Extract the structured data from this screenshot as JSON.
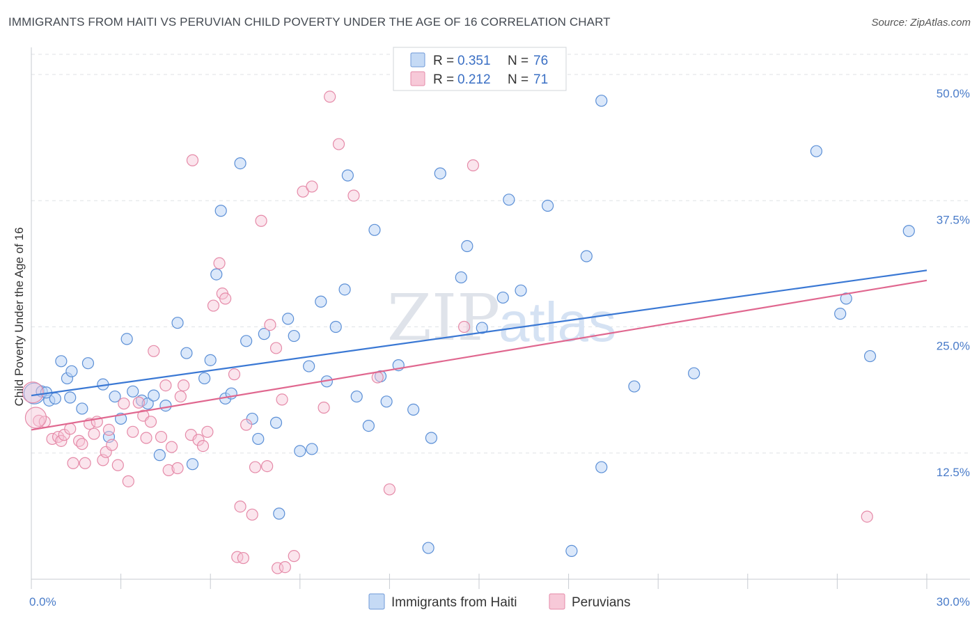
{
  "title": "IMMIGRANTS FROM HAITI VS PERUVIAN CHILD POVERTY UNDER THE AGE OF 16 CORRELATION CHART",
  "source": "Source: ZipAtlas.com",
  "watermark": {
    "zip": "ZIP",
    "atlas": "atlas"
  },
  "colors": {
    "blue": "#3a78d4",
    "blue_fill": "#c5daf5",
    "pink": "#e0678f",
    "pink_fill": "#f7c9d8",
    "tick_text": "#4a7cc9"
  },
  "legend": {
    "rows": [
      {
        "r_label": "R = ",
        "r_value": "0.351",
        "n_label": "N = ",
        "n_value": "76"
      },
      {
        "r_label": "R = ",
        "r_value": "0.212",
        "n_label": "N = ",
        "n_value": "71"
      }
    ]
  },
  "chart_data": {
    "type": "scatter",
    "ylabel": "Child Poverty Under the Age of 16",
    "xlim": [
      0,
      30
    ],
    "ylim": [
      0,
      52
    ],
    "x_tick_labels": [
      {
        "value": 0,
        "label": "0.0%"
      },
      {
        "value": 30,
        "label": "30.0%"
      }
    ],
    "y_tick_labels": [
      {
        "value": 12.5,
        "label": "12.5%"
      },
      {
        "value": 25,
        "label": "25.0%"
      },
      {
        "value": 37.5,
        "label": "37.5%"
      },
      {
        "value": 50,
        "label": "50.0%"
      }
    ],
    "grid": true,
    "legend_position": "top-center",
    "series": [
      {
        "name": "Immigrants from Haiti",
        "color": "#3a78d4",
        "trend": [
          [
            0,
            18.2
          ],
          [
            30,
            30.6
          ]
        ],
        "points": [
          [
            0.1,
            18.4
          ],
          [
            0.35,
            18.6
          ],
          [
            0.6,
            17.7
          ],
          [
            0.8,
            17.9
          ],
          [
            1.0,
            21.6
          ],
          [
            1.2,
            19.9
          ],
          [
            1.35,
            20.6
          ],
          [
            1.7,
            16.9
          ],
          [
            1.9,
            21.4
          ],
          [
            2.4,
            19.3
          ],
          [
            2.8,
            18.1
          ],
          [
            2.6,
            14.1
          ],
          [
            3.0,
            15.9
          ],
          [
            3.2,
            23.8
          ],
          [
            3.4,
            18.6
          ],
          [
            3.7,
            17.7
          ],
          [
            3.9,
            17.4
          ],
          [
            4.1,
            18.2
          ],
          [
            4.3,
            12.3
          ],
          [
            4.5,
            17.2
          ],
          [
            4.9,
            25.4
          ],
          [
            5.2,
            22.4
          ],
          [
            5.4,
            11.4
          ],
          [
            5.8,
            19.9
          ],
          [
            6.0,
            21.7
          ],
          [
            6.2,
            30.2
          ],
          [
            6.35,
            36.5
          ],
          [
            6.5,
            17.9
          ],
          [
            6.7,
            18.4
          ],
          [
            7.0,
            41.2
          ],
          [
            7.2,
            23.6
          ],
          [
            7.4,
            15.9
          ],
          [
            7.6,
            13.9
          ],
          [
            7.8,
            24.3
          ],
          [
            8.2,
            15.5
          ],
          [
            8.3,
            6.5
          ],
          [
            8.6,
            25.8
          ],
          [
            8.8,
            24.1
          ],
          [
            9.0,
            12.7
          ],
          [
            9.3,
            21.1
          ],
          [
            9.4,
            12.9
          ],
          [
            9.7,
            27.5
          ],
          [
            9.9,
            19.6
          ],
          [
            10.2,
            25.0
          ],
          [
            10.5,
            28.7
          ],
          [
            10.6,
            40.0
          ],
          [
            10.9,
            18.1
          ],
          [
            11.3,
            15.2
          ],
          [
            11.5,
            34.6
          ],
          [
            11.7,
            20.1
          ],
          [
            11.9,
            17.6
          ],
          [
            12.3,
            21.2
          ],
          [
            12.8,
            16.8
          ],
          [
            13.3,
            3.1
          ],
          [
            13.4,
            14.0
          ],
          [
            13.7,
            40.2
          ],
          [
            14.4,
            29.9
          ],
          [
            14.6,
            33.0
          ],
          [
            15.1,
            24.9
          ],
          [
            15.8,
            27.9
          ],
          [
            16.0,
            37.6
          ],
          [
            16.4,
            28.6
          ],
          [
            17.3,
            37.0
          ],
          [
            18.1,
            2.8
          ],
          [
            18.6,
            32.0
          ],
          [
            19.1,
            47.4
          ],
          [
            19.1,
            11.1
          ],
          [
            20.2,
            19.1
          ],
          [
            22.2,
            20.4
          ],
          [
            26.3,
            42.4
          ],
          [
            27.1,
            26.3
          ],
          [
            27.3,
            27.8
          ],
          [
            28.1,
            22.1
          ],
          [
            29.4,
            34.5
          ],
          [
            0.5,
            18.5
          ],
          [
            1.3,
            18.0
          ]
        ]
      },
      {
        "name": "Peruvians",
        "color": "#e0678f",
        "trend": [
          [
            0,
            14.8
          ],
          [
            30,
            29.6
          ]
        ],
        "points": [
          [
            0.05,
            18.5
          ],
          [
            0.25,
            15.7
          ],
          [
            0.45,
            15.6
          ],
          [
            0.7,
            13.9
          ],
          [
            0.9,
            14.1
          ],
          [
            1.0,
            13.7
          ],
          [
            1.1,
            14.3
          ],
          [
            1.3,
            14.9
          ],
          [
            1.4,
            11.5
          ],
          [
            1.6,
            13.7
          ],
          [
            1.7,
            13.4
          ],
          [
            1.8,
            11.5
          ],
          [
            1.95,
            15.4
          ],
          [
            2.1,
            14.4
          ],
          [
            2.2,
            15.6
          ],
          [
            2.4,
            11.8
          ],
          [
            2.5,
            12.6
          ],
          [
            2.6,
            14.8
          ],
          [
            2.7,
            13.3
          ],
          [
            2.9,
            11.3
          ],
          [
            3.1,
            17.4
          ],
          [
            3.25,
            9.7
          ],
          [
            3.4,
            14.6
          ],
          [
            3.6,
            17.5
          ],
          [
            3.75,
            16.2
          ],
          [
            3.85,
            14.0
          ],
          [
            4.0,
            15.6
          ],
          [
            4.1,
            22.6
          ],
          [
            4.35,
            14.1
          ],
          [
            4.5,
            19.2
          ],
          [
            4.6,
            10.8
          ],
          [
            4.7,
            13.1
          ],
          [
            4.9,
            11.0
          ],
          [
            5.0,
            18.1
          ],
          [
            5.1,
            19.2
          ],
          [
            5.35,
            14.3
          ],
          [
            5.4,
            41.5
          ],
          [
            5.6,
            13.8
          ],
          [
            5.75,
            13.2
          ],
          [
            5.9,
            14.6
          ],
          [
            6.1,
            27.1
          ],
          [
            6.3,
            31.3
          ],
          [
            6.4,
            28.3
          ],
          [
            6.5,
            27.8
          ],
          [
            6.8,
            20.3
          ],
          [
            6.9,
            2.2
          ],
          [
            7.0,
            7.2
          ],
          [
            7.1,
            2.1
          ],
          [
            7.2,
            15.3
          ],
          [
            7.4,
            6.4
          ],
          [
            7.5,
            11.1
          ],
          [
            7.7,
            35.5
          ],
          [
            7.9,
            11.2
          ],
          [
            8.0,
            25.2
          ],
          [
            8.2,
            22.9
          ],
          [
            8.25,
            1.1
          ],
          [
            8.4,
            17.8
          ],
          [
            8.5,
            1.2
          ],
          [
            8.8,
            2.3
          ],
          [
            9.1,
            38.4
          ],
          [
            9.4,
            38.9
          ],
          [
            9.8,
            17.0
          ],
          [
            10.0,
            47.8
          ],
          [
            10.3,
            43.1
          ],
          [
            10.8,
            38.0
          ],
          [
            11.6,
            20.0
          ],
          [
            12.0,
            8.9
          ],
          [
            14.5,
            25.0
          ],
          [
            14.8,
            41.0
          ],
          [
            28.0,
            6.2
          ],
          [
            0.15,
            16.0
          ]
        ]
      }
    ]
  }
}
